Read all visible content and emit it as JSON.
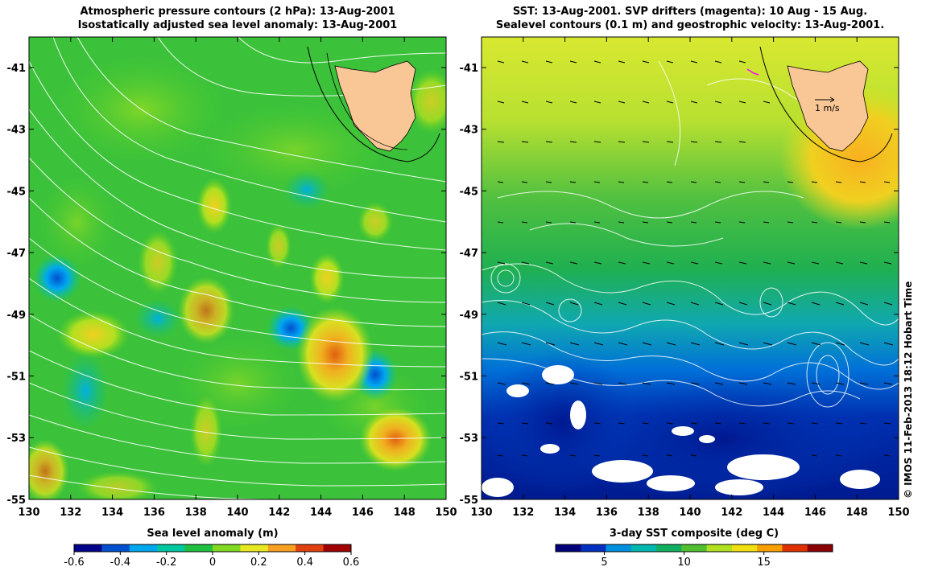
{
  "left_panel": {
    "title_line1": "Atmospheric pressure contours (2 hPa): 13-Aug-2001",
    "title_line2": "Isostatically adjusted sea level anomaly: 13-Aug-2001",
    "x_ticks": [
      "130",
      "132",
      "134",
      "136",
      "138",
      "140",
      "142",
      "144",
      "146",
      "148",
      "150"
    ],
    "y_ticks": [
      "-41",
      "-43",
      "-45",
      "-47",
      "-49",
      "-51",
      "-53",
      "-55"
    ],
    "colorbar_label": "Sea level anomaly (m)",
    "colorbar_ticks": [
      "-0.6",
      "-0.4",
      "-0.2",
      "0",
      "0.2",
      "0.4",
      "0.6"
    ]
  },
  "right_panel": {
    "title_line1": "SST: 13-Aug-2001. SVP drifters (magenta): 10 Aug - 15 Aug.",
    "title_line2": "Sealevel contours (0.1 m) and geostrophic velocity: 13-Aug-2001.",
    "x_ticks": [
      "130",
      "132",
      "134",
      "136",
      "138",
      "140",
      "142",
      "144",
      "146",
      "148",
      "150"
    ],
    "y_ticks": [
      "-41",
      "-43",
      "-45",
      "-47",
      "-49",
      "-51",
      "-53",
      "-55"
    ],
    "scale_arrow_label": "1 m/s",
    "colorbar_label": "3-day SST composite (deg C)",
    "colorbar_ticks": [
      "5",
      "10",
      "15"
    ]
  },
  "credit": "© IMOS 11-Feb-2013 18:12 Hobart Time",
  "colors": {
    "land": "#f9c795",
    "sla_scale": [
      "#00008b",
      "#0050d0",
      "#00a8f0",
      "#00c8a0",
      "#20c040",
      "#80d820",
      "#e8e820",
      "#f8a020",
      "#e04010",
      "#a00000"
    ],
    "sst_scale": [
      "#00007a",
      "#0030c0",
      "#0090e0",
      "#00b8b0",
      "#10b060",
      "#50c030",
      "#b0e020",
      "#f0e010",
      "#f8a000",
      "#e03000",
      "#8b0000"
    ],
    "drifter": "#ff00ff"
  }
}
